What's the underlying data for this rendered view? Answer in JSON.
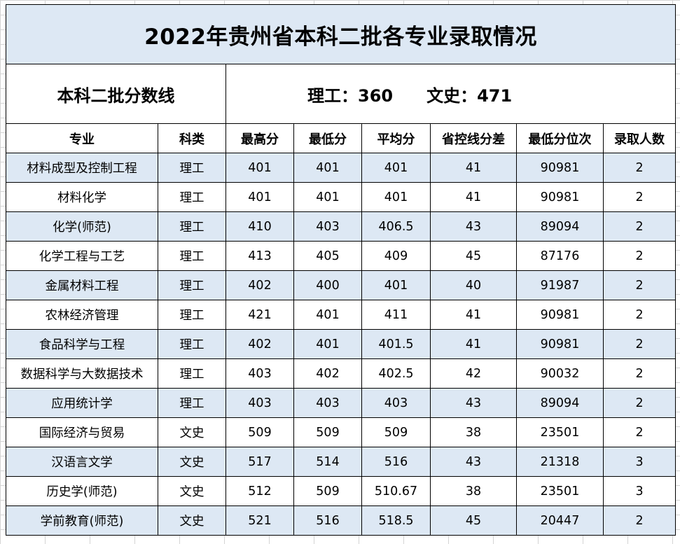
{
  "title": "2022年贵州省本科二批各专业录取情况",
  "score_line": {
    "label": "本科二批分数线",
    "science_label": "理工：",
    "science_value": "360",
    "arts_label": "文史：",
    "arts_value": "471"
  },
  "columns": [
    "专业",
    "科类",
    "最高分",
    "最低分",
    "平均分",
    "省控线分差",
    "最低分位次",
    "录取人数"
  ],
  "rows": [
    [
      "材料成型及控制工程",
      "理工",
      "401",
      "401",
      "401",
      "41",
      "90981",
      "2"
    ],
    [
      "材料化学",
      "理工",
      "401",
      "401",
      "401",
      "41",
      "90981",
      "2"
    ],
    [
      "化学(师范)",
      "理工",
      "410",
      "403",
      "406.5",
      "43",
      "89094",
      "2"
    ],
    [
      "化学工程与工艺",
      "理工",
      "413",
      "405",
      "409",
      "45",
      "87176",
      "2"
    ],
    [
      "金属材料工程",
      "理工",
      "402",
      "400",
      "401",
      "40",
      "91987",
      "2"
    ],
    [
      "农林经济管理",
      "理工",
      "421",
      "401",
      "411",
      "41",
      "90981",
      "2"
    ],
    [
      "食品科学与工程",
      "理工",
      "402",
      "401",
      "401.5",
      "41",
      "90981",
      "2"
    ],
    [
      "数据科学与大数据技术",
      "理工",
      "403",
      "402",
      "402.5",
      "42",
      "90032",
      "2"
    ],
    [
      "应用统计学",
      "理工",
      "403",
      "403",
      "403",
      "43",
      "89094",
      "2"
    ],
    [
      "国际经济与贸易",
      "文史",
      "509",
      "509",
      "509",
      "38",
      "23501",
      "2"
    ],
    [
      "汉语言文学",
      "文史",
      "517",
      "514",
      "516",
      "43",
      "21318",
      "3"
    ],
    [
      "历史学(师范)",
      "文史",
      "512",
      "509",
      "510.67",
      "38",
      "23501",
      "3"
    ],
    [
      "学前教育(师范)",
      "文史",
      "521",
      "516",
      "518.5",
      "45",
      "20447",
      "2"
    ]
  ],
  "colors": {
    "band": "#dde8f4",
    "border": "#000000",
    "gridline": "#d4d4d4"
  }
}
